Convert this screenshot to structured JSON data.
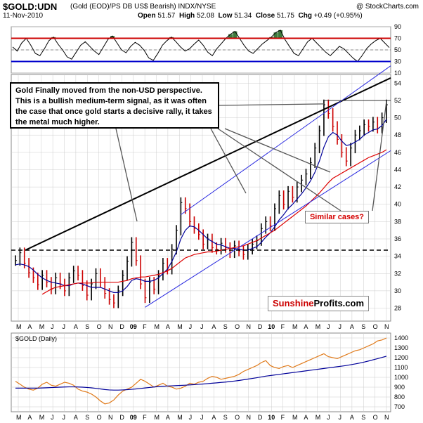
{
  "header": {
    "symbol": "$GOLD:UDN",
    "description": "(Gold (EOD)/PS DB US$ Bearish) INDX/NYSE",
    "copyright": "@ StockCharts.com",
    "date": "11-Nov-2010",
    "open_label": "Open",
    "open": "51.57",
    "high_label": "High",
    "high": "52.08",
    "low_label": "Low",
    "low": "51.34",
    "close_label": "Close",
    "close": "51.75",
    "chg_label": "Chg",
    "chg": "+0.49 (+0.95%)"
  },
  "annotations": {
    "note": "Gold Finally moved from the non-USD perspective. This is a bullish medium-term signal, as it was often the case that once gold starts a decisive rally, it takes the metal much higher.",
    "similar_cases": "Similar cases?",
    "brand_part1": "Sunshine",
    "brand_part2": "Profits.com"
  },
  "colors": {
    "price_bars": "#000000",
    "price_down_bars": "#cc0000",
    "ma_short": "#000099",
    "ma_long": "#dd0000",
    "channel": "#2a2ae0",
    "rsi_fill": "#3c7a3c",
    "gold_line": "#e07a1a",
    "grid": "#cccccc"
  },
  "chart_data": [
    {
      "type": "line",
      "panel": "rsi",
      "ylim": [
        10,
        90
      ],
      "yticks": [
        10,
        30,
        50,
        70,
        90
      ],
      "levels": [
        30,
        70
      ],
      "values": [
        55,
        48,
        62,
        70,
        58,
        44,
        40,
        52,
        66,
        72,
        60,
        50,
        38,
        34,
        46,
        58,
        64,
        56,
        48,
        42,
        55,
        68,
        74,
        62,
        50,
        45,
        56,
        63,
        58,
        49,
        36,
        32,
        44,
        58,
        66,
        72,
        64,
        55,
        48,
        52,
        60,
        67,
        58,
        46,
        40,
        52,
        61,
        70,
        77,
        82,
        70,
        58,
        48,
        44,
        52,
        60,
        66,
        72,
        80,
        84,
        68,
        56,
        44,
        40,
        52,
        64,
        70,
        62,
        54,
        46,
        40,
        48,
        56,
        52,
        44,
        36,
        30,
        40,
        52,
        60,
        66,
        70,
        62,
        54
      ]
    },
    {
      "type": "line",
      "panel": "price",
      "title": "$GOLD:UDN",
      "ylim": [
        26.5,
        55
      ],
      "yticks": [
        28,
        30,
        32,
        34,
        36,
        38,
        40,
        42,
        44,
        46,
        48,
        50,
        52,
        54
      ],
      "x_labels": [
        "M",
        "A",
        "M",
        "J",
        "J",
        "A",
        "S",
        "O",
        "N",
        "D",
        "09",
        "F",
        "M",
        "A",
        "M",
        "J",
        "J",
        "A",
        "S",
        "O",
        "N",
        "D",
        "10",
        "F",
        "M",
        "A",
        "M",
        "J",
        "J",
        "A",
        "S",
        "O",
        "N"
      ],
      "x_label_bold": [
        "09",
        "10"
      ],
      "values": [
        33.5,
        34.4,
        33.2,
        32.1,
        31.5,
        30.7,
        31.8,
        31.0,
        30.2,
        31.5,
        30.8,
        30.0,
        31.5,
        32.3,
        31.8,
        30.6,
        29.5,
        30.8,
        32.0,
        31.0,
        29.7,
        29.0,
        28.6,
        30.0,
        31.8,
        33.4,
        35.6,
        33.5,
        30.8,
        29.2,
        31.0,
        30.2,
        31.8,
        33.2,
        32.5,
        34.8,
        37.0,
        40.2,
        39.5,
        38.0,
        37.2,
        36.5,
        35.4,
        36.0,
        35.0,
        34.8,
        35.5,
        35.0,
        34.4,
        35.2,
        34.6,
        34.2,
        34.8,
        35.4,
        35.8,
        37.2,
        38.0,
        37.5,
        39.5,
        41.0,
        40.0,
        41.5,
        40.8,
        42.0,
        42.8,
        43.5,
        44.8,
        46.5,
        48.5,
        51.5,
        50.5,
        49.0,
        47.5,
        46.0,
        45.0,
        46.5,
        48.0,
        48.5,
        49.2,
        49.0,
        49.5,
        48.8,
        50.0,
        51.5
      ],
      "ma50": [
        33.0,
        33.1,
        33.0,
        32.8,
        32.4,
        31.9,
        31.5,
        31.2,
        31.0,
        30.9,
        30.8,
        30.6,
        30.6,
        30.8,
        30.9,
        30.8,
        30.6,
        30.4,
        30.4,
        30.4,
        30.2,
        30.0,
        29.8,
        29.8,
        30.0,
        30.5,
        31.2,
        31.4,
        31.3,
        31.1,
        31.1,
        31.2,
        31.5,
        32.0,
        32.5,
        33.4,
        34.5,
        36.0,
        37.0,
        37.5,
        37.4,
        37.0,
        36.5,
        36.0,
        35.7,
        35.4,
        35.3,
        35.1,
        34.9,
        34.9,
        34.8,
        34.7,
        34.7,
        34.9,
        35.1,
        35.6,
        36.2,
        36.7,
        37.4,
        38.2,
        38.8,
        39.5,
        40.0,
        40.6,
        41.2,
        41.9,
        42.7,
        43.7,
        45.0,
        46.6,
        47.8,
        48.3,
        48.0,
        47.3,
        46.8,
        46.9,
        47.2,
        47.5,
        48.0,
        48.3,
        48.6,
        48.7,
        49.1,
        49.8
      ],
      "ma200": [
        null,
        null,
        null,
        null,
        null,
        null,
        29.6,
        29.9,
        30.2,
        30.4,
        30.5,
        30.6,
        30.7,
        30.8,
        30.9,
        30.9,
        30.9,
        30.9,
        31.0,
        31.0,
        31.0,
        31.0,
        31.0,
        31.0,
        31.1,
        31.2,
        31.4,
        31.5,
        31.6,
        31.6,
        31.7,
        31.8,
        31.9,
        32.1,
        32.3,
        32.6,
        33.0,
        33.4,
        33.8,
        34.0,
        34.2,
        34.3,
        34.4,
        34.5,
        34.5,
        34.6,
        34.7,
        34.8,
        34.9,
        35.0,
        35.1,
        35.2,
        35.4,
        35.6,
        35.8,
        36.1,
        36.4,
        36.7,
        37.0,
        37.4,
        37.8,
        38.2,
        38.6,
        39.0,
        39.4,
        39.8,
        40.3,
        40.8,
        41.3,
        41.9,
        42.5,
        43.0,
        43.3,
        43.6,
        43.9,
        44.2,
        44.5,
        44.8,
        45.1,
        45.4,
        45.6,
        45.8,
        46.0,
        46.3
      ]
    },
    {
      "type": "line",
      "panel": "gold",
      "title": "$GOLD (Daily)",
      "ylim": [
        650,
        1450
      ],
      "yticks": [
        700,
        800,
        900,
        1000,
        1100,
        1200,
        1300,
        1400
      ],
      "values": [
        960,
        930,
        900,
        880,
        870,
        890,
        930,
        950,
        920,
        910,
        930,
        950,
        940,
        920,
        880,
        860,
        850,
        830,
        800,
        760,
        730,
        740,
        770,
        820,
        860,
        880,
        900,
        940,
        980,
        960,
        930,
        900,
        920,
        940,
        910,
        900,
        880,
        890,
        910,
        940,
        930,
        950,
        960,
        990,
        1010,
        1000,
        980,
        990,
        1000,
        1010,
        1030,
        1060,
        1080,
        1100,
        1120,
        1150,
        1170,
        1120,
        1100,
        1090,
        1110,
        1120,
        1100,
        1120,
        1140,
        1160,
        1180,
        1200,
        1220,
        1240,
        1210,
        1200,
        1190,
        1210,
        1230,
        1250,
        1270,
        1280,
        1300,
        1320,
        1340,
        1370,
        1380,
        1400
      ],
      "ma": [
        890,
        890,
        890,
        890,
        890,
        890,
        892,
        894,
        896,
        898,
        900,
        902,
        903,
        903,
        902,
        900,
        897,
        893,
        888,
        882,
        876,
        872,
        870,
        870,
        872,
        875,
        878,
        882,
        887,
        892,
        897,
        902,
        906,
        909,
        912,
        914,
        916,
        918,
        920,
        923,
        926,
        929,
        932,
        936,
        940,
        944,
        948,
        952,
        957,
        962,
        968,
        975,
        982,
        989,
        996,
        1004,
        1012,
        1018,
        1024,
        1030,
        1036,
        1042,
        1048,
        1054,
        1060,
        1066,
        1072,
        1078,
        1084,
        1090,
        1096,
        1102,
        1108,
        1114,
        1120,
        1128,
        1136,
        1145,
        1155,
        1166,
        1178,
        1190,
        1202,
        1215
      ]
    }
  ]
}
